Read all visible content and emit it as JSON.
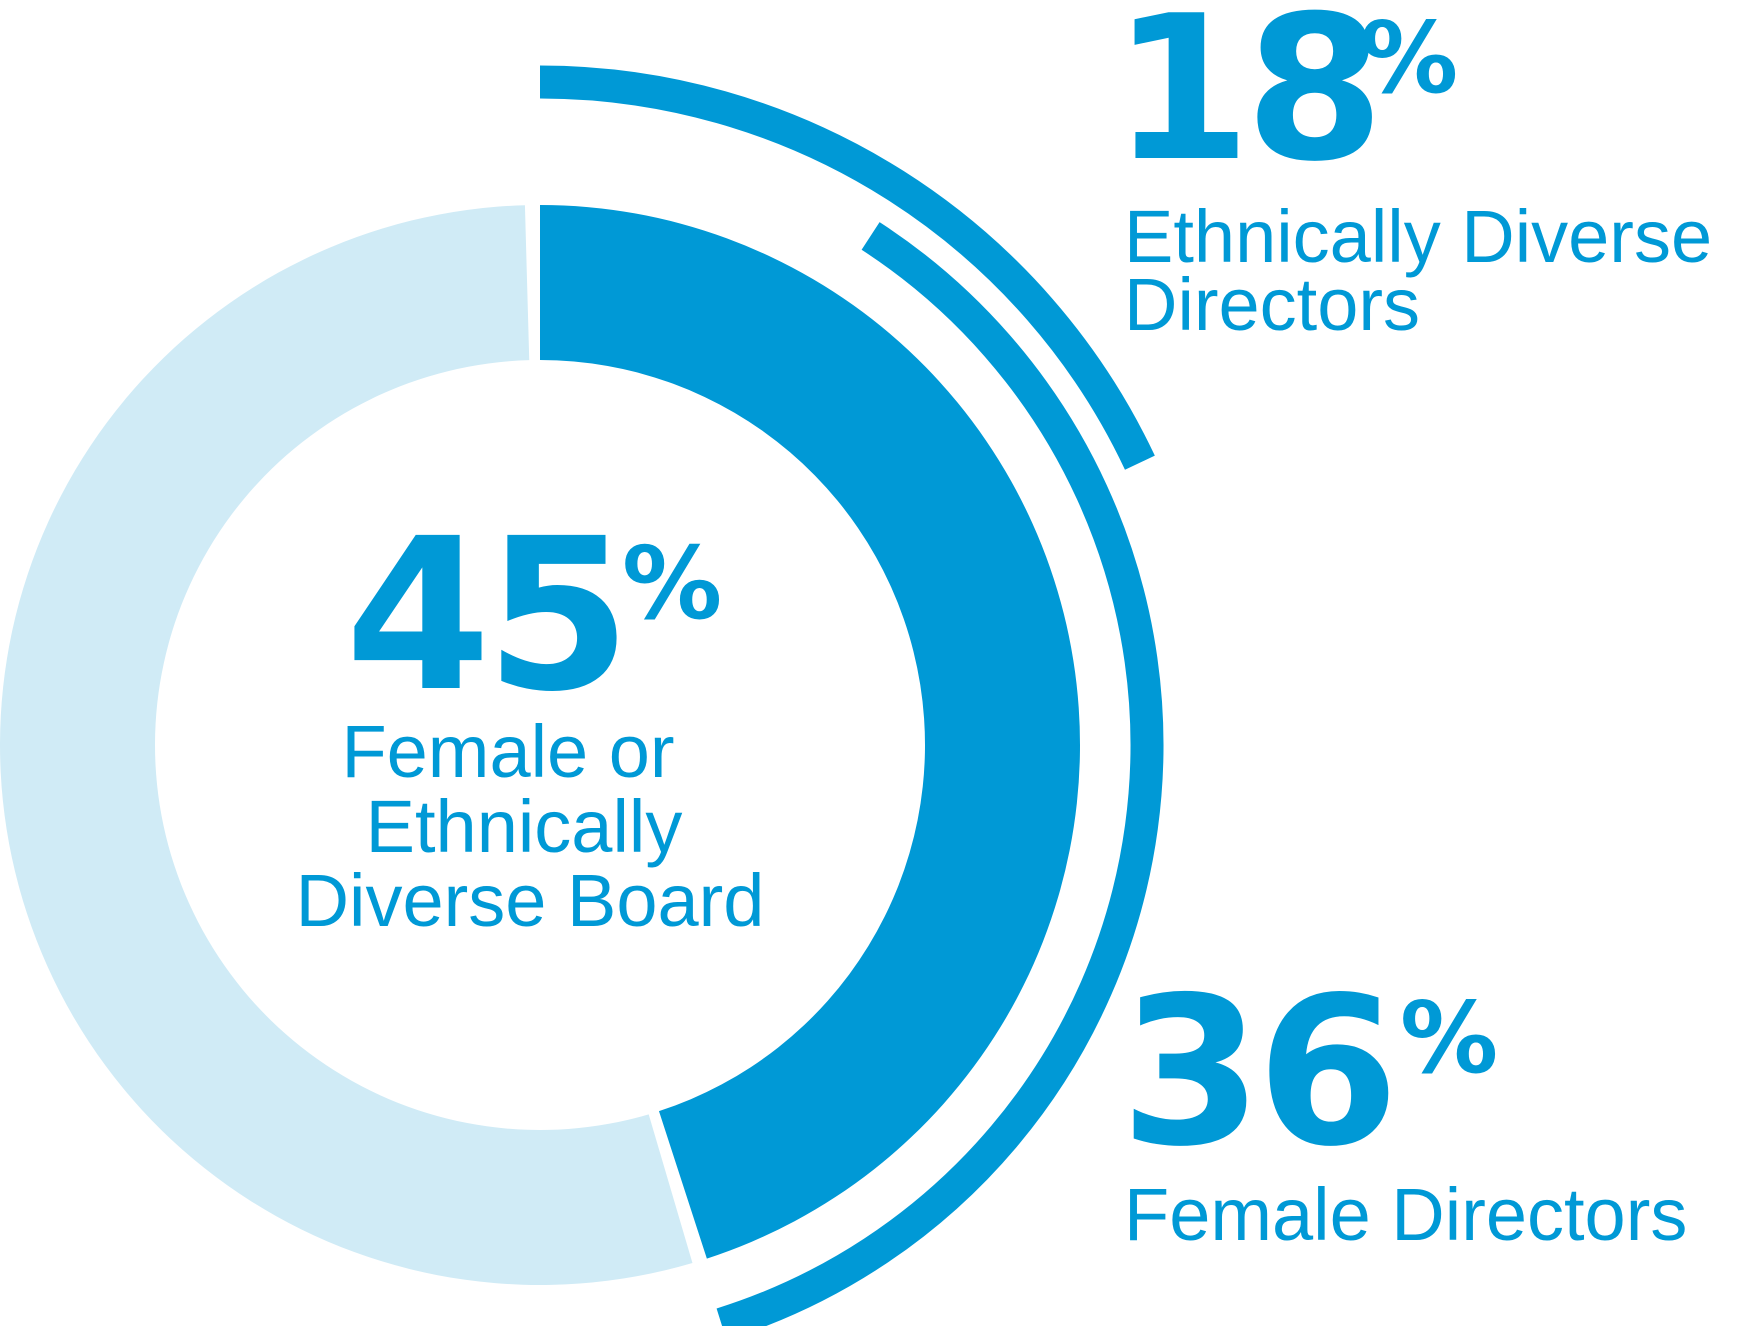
{
  "chart_data": {
    "type": "pie",
    "colors": {
      "accent": "#0099d6",
      "track": "#d0ebf6",
      "background": "#ffffff"
    },
    "series": [
      {
        "value": 45,
        "value_text": "45",
        "unit": "%",
        "label_lines": [
          "Female or",
          "Ethnically",
          "Diverse Board"
        ]
      },
      {
        "value": 36,
        "value_text": "36",
        "unit": "%",
        "label_lines": [
          "Female Directors"
        ]
      },
      {
        "value": 18,
        "value_text": "18",
        "unit": "%",
        "label_lines": [
          "Ethnically Diverse",
          "Directors"
        ]
      }
    ]
  }
}
